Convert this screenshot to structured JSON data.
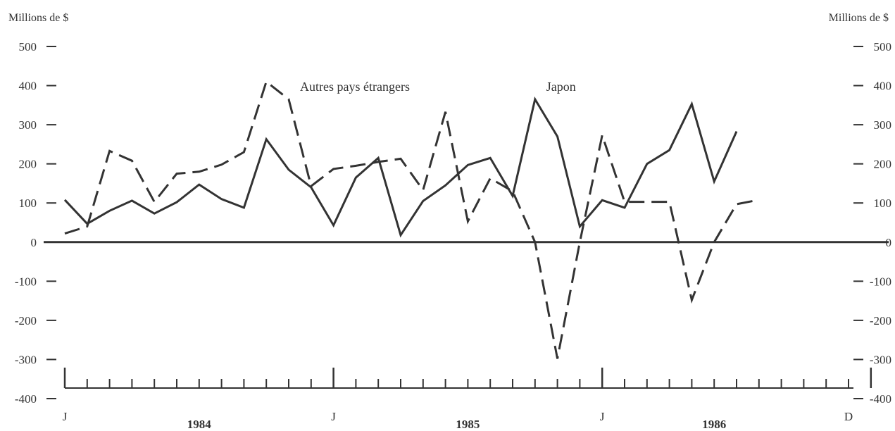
{
  "chart_data": {
    "type": "line",
    "left_axis_title": "Millions de $",
    "right_axis_title": "Millions de $",
    "y_ticks": [
      500,
      400,
      300,
      200,
      100,
      0,
      -100,
      -200,
      -300,
      -400
    ],
    "ylim": [
      -400,
      500
    ],
    "grid": false,
    "x_period": {
      "start": "1984-01",
      "end": "1986-12",
      "frequency": "monthly"
    },
    "x_month_labels": [
      {
        "month": "1984-01",
        "label": "J"
      },
      {
        "month": "1985-01",
        "label": "J"
      },
      {
        "month": "1986-01",
        "label": "J"
      },
      {
        "month": "1986-12",
        "label": "D"
      }
    ],
    "x_year_labels": [
      {
        "month": "1984-07",
        "label": "1984"
      },
      {
        "month": "1985-07",
        "label": "1985"
      },
      {
        "month": "1986-06",
        "label": "1986"
      }
    ],
    "series": [
      {
        "name": "Japon",
        "style": "solid",
        "color": "#333333",
        "label_at": "1985-10",
        "points": [
          [
            "1984-01",
            108
          ],
          [
            "1984-02",
            47
          ],
          [
            "1984-03",
            80
          ],
          [
            "1984-04",
            106
          ],
          [
            "1984-05",
            73
          ],
          [
            "1984-06",
            102
          ],
          [
            "1984-07",
            147
          ],
          [
            "1984-08",
            110
          ],
          [
            "1984-09",
            88
          ],
          [
            "1984-10",
            263
          ],
          [
            "1984-11",
            185
          ],
          [
            "1984-12",
            140
          ],
          [
            "1985-01",
            43
          ],
          [
            "1985-02",
            165
          ],
          [
            "1985-03",
            215
          ],
          [
            "1985-04",
            18
          ],
          [
            "1985-05",
            105
          ],
          [
            "1985-06",
            145
          ],
          [
            "1985-07",
            197
          ],
          [
            "1985-08",
            215
          ],
          [
            "1985-09",
            118
          ],
          [
            "1985-10",
            365
          ],
          [
            "1985-11",
            270
          ],
          [
            "1985-12",
            40
          ],
          [
            "1986-01",
            107
          ],
          [
            "1986-02",
            88
          ],
          [
            "1986-03",
            200
          ],
          [
            "1986-04",
            235
          ],
          [
            "1986-05",
            353
          ],
          [
            "1986-06",
            155
          ],
          [
            "1986-07",
            283
          ]
        ]
      },
      {
        "name": "Autres pays étrangers",
        "style": "dashed",
        "color": "#333333",
        "label_at": "1984-11",
        "points": [
          [
            "1984-01",
            22
          ],
          [
            "1984-02",
            40
          ],
          [
            "1984-03",
            233
          ],
          [
            "1984-04",
            208
          ],
          [
            "1984-05",
            103
          ],
          [
            "1984-06",
            175
          ],
          [
            "1984-07",
            180
          ],
          [
            "1984-08",
            198
          ],
          [
            "1984-09",
            230
          ],
          [
            "1984-10",
            410
          ],
          [
            "1984-11",
            365
          ],
          [
            "1984-12",
            143
          ],
          [
            "1985-01",
            187
          ],
          [
            "1985-02",
            195
          ],
          [
            "1985-03",
            205
          ],
          [
            "1985-04",
            213
          ],
          [
            "1985-05",
            133
          ],
          [
            "1985-06",
            333
          ],
          [
            "1985-07",
            53
          ],
          [
            "1985-08",
            163
          ],
          [
            "1985-09",
            130
          ],
          [
            "1985-10",
            0
          ],
          [
            "1985-11",
            -298
          ],
          [
            "1985-12",
            0
          ],
          [
            "1986-01",
            273
          ],
          [
            "1986-02",
            103
          ],
          [
            "1986-03",
            103
          ],
          [
            "1986-04",
            103
          ],
          [
            "1986-05",
            -148
          ],
          [
            "1986-06",
            0
          ],
          [
            "1986-07",
            97
          ],
          [
            "1986-08",
            108
          ]
        ]
      }
    ]
  }
}
